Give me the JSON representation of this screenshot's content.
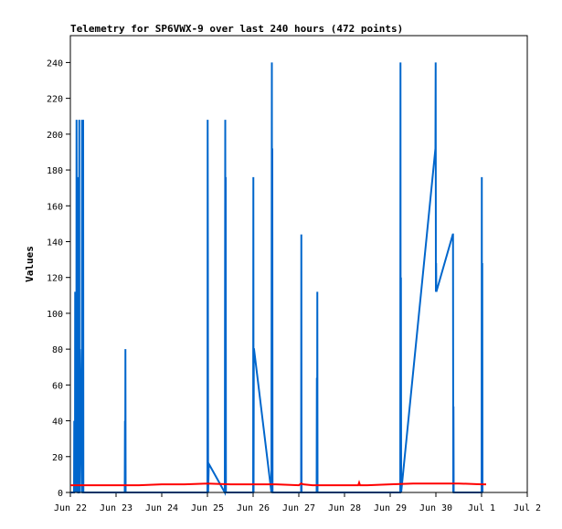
{
  "chart_data": {
    "type": "line",
    "title": "Telemetry for SP6VWX-9 over last 240 hours (472 points)",
    "xlabel": "",
    "ylabel": "Values",
    "ylim": [
      0,
      255
    ],
    "xlim": [
      0,
      10
    ],
    "x_tick_values": [
      0,
      1,
      2,
      3,
      4,
      5,
      6,
      7,
      8,
      9,
      10
    ],
    "x_tick_labels": [
      "Jun 22",
      "Jun 23",
      "Jun 24",
      "Jun 25",
      "Jun 26",
      "Jun 27",
      "Jun 28",
      "Jun 29",
      "Jun 30",
      "Jul 1",
      "Jul 2"
    ],
    "y_ticks": [
      0,
      20,
      40,
      60,
      80,
      100,
      120,
      140,
      160,
      180,
      200,
      220,
      240
    ],
    "grid": false,
    "legend": "none",
    "series": [
      {
        "color": "#0066cc",
        "x": [
          0.0,
          0.08,
          0.085,
          0.1,
          0.105,
          0.13,
          0.135,
          0.15,
          0.155,
          0.17,
          0.175,
          0.19,
          0.195,
          0.2,
          0.205,
          0.25,
          0.255,
          0.26,
          0.265,
          0.27,
          0.275,
          0.28,
          0.285,
          0.29,
          1.19,
          1.195,
          1.2,
          1.205,
          1.21,
          3.0,
          3.005,
          3.01,
          3.015,
          3.03,
          3.38,
          3.385,
          3.39,
          3.395,
          3.4,
          3.405,
          3.41,
          4.0,
          4.005,
          4.01,
          4.015,
          4.02,
          4.4,
          4.405,
          4.41,
          4.415,
          4.42,
          4.425,
          4.43,
          5.05,
          5.055,
          5.06,
          5.065,
          5.39,
          5.395,
          5.4,
          5.405,
          5.41,
          7.22,
          7.225,
          7.23,
          7.235,
          7.24,
          7.99,
          7.995,
          8.0,
          8.005,
          8.01,
          8.37,
          8.375,
          8.38,
          8.385,
          8.39,
          9.0,
          9.005,
          9.01,
          9.015,
          9.02
        ],
        "values": [
          0,
          0,
          40,
          0,
          112,
          0,
          208,
          0,
          176,
          0,
          0,
          0,
          208,
          0,
          80,
          0,
          208,
          0,
          80,
          0,
          0,
          208,
          0,
          0,
          0,
          40,
          0,
          80,
          0,
          0,
          208,
          128,
          0,
          16,
          0,
          112,
          208,
          0,
          176,
          0,
          0,
          0,
          176,
          0,
          80,
          80,
          0,
          128,
          240,
          0,
          192,
          0,
          0,
          0,
          144,
          0,
          0,
          0,
          64,
          0,
          112,
          0,
          0,
          240,
          0,
          120,
          0,
          192,
          240,
          112,
          128,
          112,
          144,
          144,
          0,
          48,
          0,
          0,
          176,
          0,
          128,
          0
        ]
      },
      {
        "color": "#ff0000",
        "x": [
          0.0,
          1.0,
          1.5,
          2.0,
          2.5,
          3.0,
          3.5,
          4.0,
          4.5,
          5.0,
          5.05,
          5.1,
          5.3,
          5.5,
          6.0,
          6.3,
          6.32,
          6.34,
          6.5,
          7.0,
          7.5,
          8.0,
          8.5,
          9.0,
          9.1
        ],
        "values": [
          4,
          4,
          4,
          4.5,
          4.5,
          5,
          4.5,
          4.5,
          4.5,
          4,
          5,
          4.5,
          4,
          4,
          4,
          4,
          5.5,
          4,
          4,
          4.5,
          5,
          5,
          5,
          4.5,
          4.5
        ]
      },
      {
        "color": "#000000",
        "x": [
          0.0,
          9.1
        ],
        "values": [
          0,
          0
        ]
      }
    ]
  }
}
